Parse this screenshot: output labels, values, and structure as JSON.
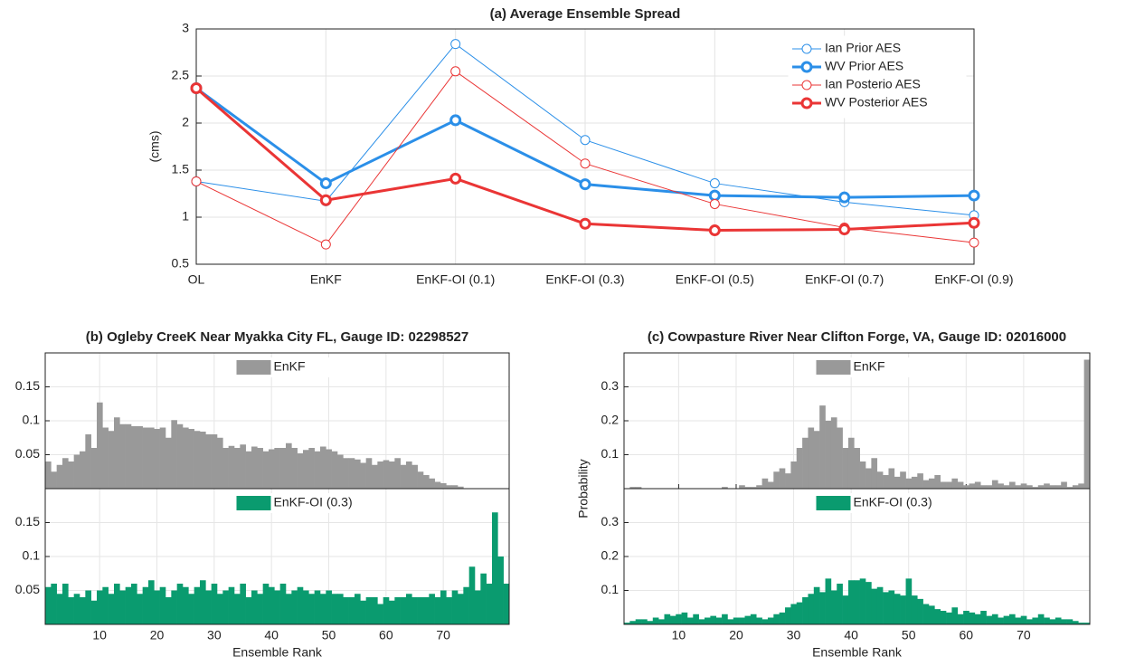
{
  "chart_data": [
    {
      "type": "line",
      "title": "(a) Average Ensemble Spread",
      "ylabel": "(cms)",
      "categories": [
        "OL",
        "EnKF",
        "EnKF-OI (0.1)",
        "EnKF-OI (0.3)",
        "EnKF-OI (0.5)",
        "EnKF-OI (0.7)",
        "EnKF-OI (0.9)"
      ],
      "series": [
        {
          "name": "Ian Prior AES",
          "color": "#2b8fe8",
          "line_width": 1,
          "values": [
            1.38,
            1.17,
            2.84,
            1.82,
            1.36,
            1.16,
            1.02
          ]
        },
        {
          "name": "WV Prior AES",
          "color": "#2b8fe8",
          "line_width": 3,
          "values": [
            2.37,
            1.36,
            2.03,
            1.35,
            1.23,
            1.21,
            1.23
          ]
        },
        {
          "name": "Ian Posterio AES",
          "color": "#ea3535",
          "line_width": 1,
          "values": [
            1.38,
            0.71,
            2.55,
            1.57,
            1.14,
            0.89,
            0.73
          ]
        },
        {
          "name": "WV Posterior AES",
          "color": "#ea3535",
          "line_width": 3,
          "values": [
            2.37,
            1.18,
            1.41,
            0.93,
            0.86,
            0.87,
            0.94
          ]
        }
      ],
      "ylim": [
        0.5,
        3
      ],
      "yticks": [
        0.5,
        1,
        1.5,
        2,
        2.5,
        3
      ],
      "grid": true,
      "legend": "upper right"
    },
    {
      "type": "histogram",
      "title": "(b) Ogleby CreeK Near Myakka City FL, Gauge ID: 02298527",
      "xlabel": "Ensemble Rank",
      "bins": [
        0.5,
        1.5,
        2.5,
        3.5,
        4.5,
        5.5,
        6.5,
        7.5,
        8.5,
        9.5,
        10.5,
        11.5,
        12.5,
        13.5,
        14.5,
        15.5,
        16.5,
        17.5,
        18.5,
        19.5,
        20.5,
        21.5,
        22.5,
        23.5,
        24.5,
        25.5,
        26.5,
        27.5,
        28.5,
        29.5,
        30.5,
        31.5,
        32.5,
        33.5,
        34.5,
        35.5,
        36.5,
        37.5,
        38.5,
        39.5,
        40.5,
        41.5,
        42.5,
        43.5,
        44.5,
        45.5,
        46.5,
        47.5,
        48.5,
        49.5,
        50.5,
        51.5,
        52.5,
        53.5,
        54.5,
        55.5,
        56.5,
        57.5,
        58.5,
        59.5,
        60.5,
        61.5,
        62.5,
        63.5,
        64.5,
        65.5,
        66.5,
        67.5,
        68.5,
        69.5,
        70.5,
        71.5,
        72.5,
        73.5,
        74.5,
        75.5,
        76.5,
        77.5,
        78.5,
        79.5,
        80.5,
        81.5
      ],
      "xlim": [
        0.5,
        81.5
      ],
      "xticks": [
        10,
        20,
        30,
        40,
        50,
        60,
        70
      ],
      "ylim": [
        0,
        0.2
      ],
      "yticks": [
        0.05,
        0.1,
        0.15
      ],
      "grid": true,
      "subplots": true,
      "series": [
        {
          "name": "EnKF",
          "color": "#999999",
          "values": [
            0.04,
            0.025,
            0.035,
            0.045,
            0.04,
            0.05,
            0.055,
            0.08,
            0.06,
            0.127,
            0.09,
            0.085,
            0.105,
            0.095,
            0.095,
            0.092,
            0.092,
            0.09,
            0.09,
            0.088,
            0.09,
            0.075,
            0.101,
            0.095,
            0.09,
            0.088,
            0.085,
            0.084,
            0.08,
            0.08,
            0.075,
            0.06,
            0.063,
            0.06,
            0.065,
            0.055,
            0.062,
            0.06,
            0.055,
            0.058,
            0.06,
            0.06,
            0.067,
            0.06,
            0.052,
            0.057,
            0.06,
            0.055,
            0.062,
            0.058,
            0.055,
            0.05,
            0.045,
            0.045,
            0.043,
            0.038,
            0.045,
            0.035,
            0.04,
            0.042,
            0.04,
            0.045,
            0.035,
            0.04,
            0.035,
            0.025,
            0.02,
            0.015,
            0.01,
            0.008,
            0.005,
            0.005,
            0.003,
            0,
            0,
            0,
            0,
            0,
            0,
            0,
            0
          ]
        },
        {
          "name": "EnKF-OI (0.3)",
          "color": "#0a9b6f",
          "values": [
            0.055,
            0.06,
            0.045,
            0.06,
            0.04,
            0.045,
            0.04,
            0.05,
            0.035,
            0.05,
            0.055,
            0.045,
            0.06,
            0.05,
            0.055,
            0.06,
            0.045,
            0.055,
            0.065,
            0.05,
            0.055,
            0.04,
            0.05,
            0.06,
            0.055,
            0.045,
            0.055,
            0.065,
            0.05,
            0.06,
            0.045,
            0.05,
            0.055,
            0.045,
            0.06,
            0.04,
            0.05,
            0.045,
            0.06,
            0.055,
            0.05,
            0.06,
            0.045,
            0.05,
            0.055,
            0.05,
            0.045,
            0.05,
            0.045,
            0.05,
            0.045,
            0.045,
            0.04,
            0.04,
            0.045,
            0.035,
            0.04,
            0.04,
            0.03,
            0.04,
            0.035,
            0.04,
            0.04,
            0.045,
            0.04,
            0.04,
            0.04,
            0.045,
            0.04,
            0.05,
            0.04,
            0.05,
            0.045,
            0.055,
            0.085,
            0.05,
            0.075,
            0.06,
            0.165,
            0.1,
            0.06
          ]
        }
      ]
    },
    {
      "type": "histogram",
      "title": "(c) Cowpasture River Near Clifton Forge, VA, Gauge ID: 02016000",
      "xlabel": "Ensemble Rank",
      "ylabel": "Probability",
      "bins": [
        0.5,
        1.5,
        2.5,
        3.5,
        4.5,
        5.5,
        6.5,
        7.5,
        8.5,
        9.5,
        10.5,
        11.5,
        12.5,
        13.5,
        14.5,
        15.5,
        16.5,
        17.5,
        18.5,
        19.5,
        20.5,
        21.5,
        22.5,
        23.5,
        24.5,
        25.5,
        26.5,
        27.5,
        28.5,
        29.5,
        30.5,
        31.5,
        32.5,
        33.5,
        34.5,
        35.5,
        36.5,
        37.5,
        38.5,
        39.5,
        40.5,
        41.5,
        42.5,
        43.5,
        44.5,
        45.5,
        46.5,
        47.5,
        48.5,
        49.5,
        50.5,
        51.5,
        52.5,
        53.5,
        54.5,
        55.5,
        56.5,
        57.5,
        58.5,
        59.5,
        60.5,
        61.5,
        62.5,
        63.5,
        64.5,
        65.5,
        66.5,
        67.5,
        68.5,
        69.5,
        70.5,
        71.5,
        72.5,
        73.5,
        74.5,
        75.5,
        76.5,
        77.5,
        78.5,
        79.5,
        80.5,
        81.5
      ],
      "xlim": [
        0.5,
        81.5
      ],
      "xticks": [
        10,
        20,
        30,
        40,
        50,
        60,
        70
      ],
      "ylim": [
        0,
        0.4
      ],
      "yticks": [
        0.1,
        0.2,
        0.3
      ],
      "grid": true,
      "subplots": true,
      "series": [
        {
          "name": "EnKF",
          "color": "#999999",
          "values": [
            0,
            0.005,
            0.005,
            0,
            0,
            0,
            0,
            0,
            0,
            0,
            0,
            0,
            0,
            0,
            0,
            0,
            0,
            0.005,
            0,
            0,
            0.01,
            0.005,
            0.005,
            0.01,
            0.03,
            0.02,
            0.05,
            0.06,
            0.045,
            0.08,
            0.12,
            0.15,
            0.18,
            0.17,
            0.245,
            0.2,
            0.21,
            0.18,
            0.12,
            0.15,
            0.12,
            0.08,
            0.06,
            0.09,
            0.05,
            0.04,
            0.06,
            0.035,
            0.05,
            0.03,
            0.035,
            0.045,
            0.025,
            0.03,
            0.04,
            0.02,
            0.02,
            0.03,
            0.02,
            0.01,
            0.015,
            0.02,
            0.01,
            0.01,
            0.025,
            0.015,
            0.01,
            0.02,
            0.01,
            0.015,
            0.01,
            0.005,
            0.01,
            0.015,
            0.01,
            0.01,
            0.02,
            0.005,
            0.01,
            0.015,
            0.38
          ]
        },
        {
          "name": "EnKF-OI (0.3)",
          "color": "#0a9b6f",
          "values": [
            0.005,
            0.01,
            0.015,
            0.015,
            0.01,
            0.02,
            0.015,
            0.03,
            0.025,
            0.03,
            0.035,
            0.02,
            0.03,
            0.015,
            0.02,
            0.025,
            0.02,
            0.03,
            0.015,
            0.02,
            0.02,
            0.025,
            0.03,
            0.02,
            0.015,
            0.02,
            0.03,
            0.035,
            0.05,
            0.06,
            0.065,
            0.08,
            0.09,
            0.11,
            0.095,
            0.135,
            0.1,
            0.12,
            0.085,
            0.13,
            0.13,
            0.135,
            0.125,
            0.105,
            0.11,
            0.095,
            0.1,
            0.09,
            0.085,
            0.135,
            0.085,
            0.075,
            0.06,
            0.055,
            0.045,
            0.04,
            0.035,
            0.05,
            0.03,
            0.04,
            0.035,
            0.03,
            0.04,
            0.025,
            0.03,
            0.02,
            0.025,
            0.03,
            0.02,
            0.025,
            0.015,
            0.02,
            0.03,
            0.02,
            0.015,
            0.02,
            0.015,
            0.015,
            0.01,
            0.005,
            0.005
          ]
        }
      ]
    }
  ]
}
